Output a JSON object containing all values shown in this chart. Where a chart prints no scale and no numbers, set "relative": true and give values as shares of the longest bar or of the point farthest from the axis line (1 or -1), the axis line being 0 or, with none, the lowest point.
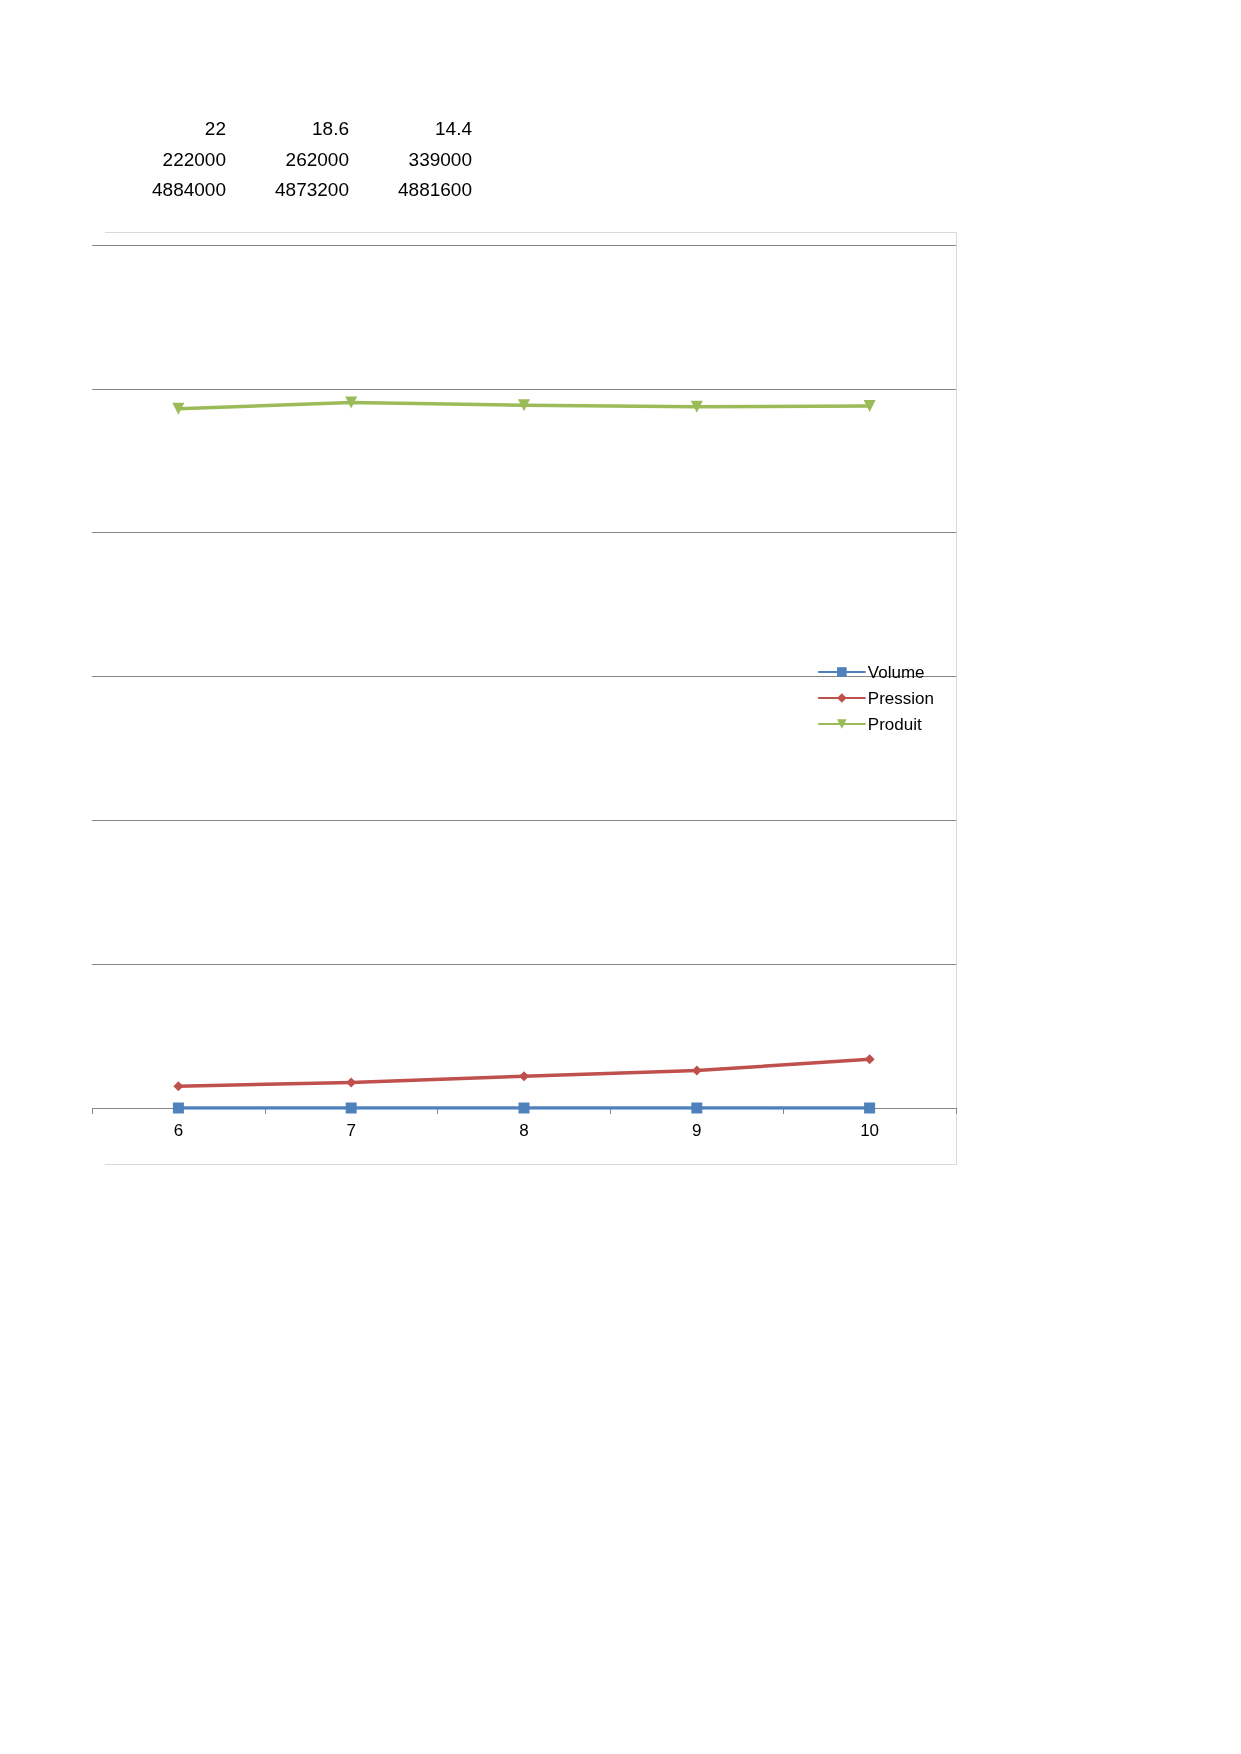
{
  "chart_data": [
    {
      "type": "other",
      "annotations": [
        "22",
        "18.6",
        "14.4",
        "222000",
        "262000",
        "339000",
        "4884000",
        "4873200",
        "4881600"
      ]
    },
    {
      "type": "line",
      "relative": true,
      "categories": [
        "6",
        "7",
        "8",
        "9",
        "10"
      ],
      "series": [
        {
          "name": "Volume",
          "color": "#4f81bd",
          "marker": "square",
          "values": [
            0,
            0,
            0,
            0,
            0
          ]
        },
        {
          "name": "Pression",
          "color": "#c0504d",
          "marker": "diamond",
          "values": [
            0.031,
            0.036,
            0.045,
            0.053,
            0.069
          ]
        },
        {
          "name": "Produit",
          "color": "#9bbb59",
          "marker": "triangle",
          "values": [
            0.991,
            1,
            0.996,
            0.994,
            0.995
          ]
        }
      ],
      "grid": "y",
      "legend": "right"
    }
  ]
}
